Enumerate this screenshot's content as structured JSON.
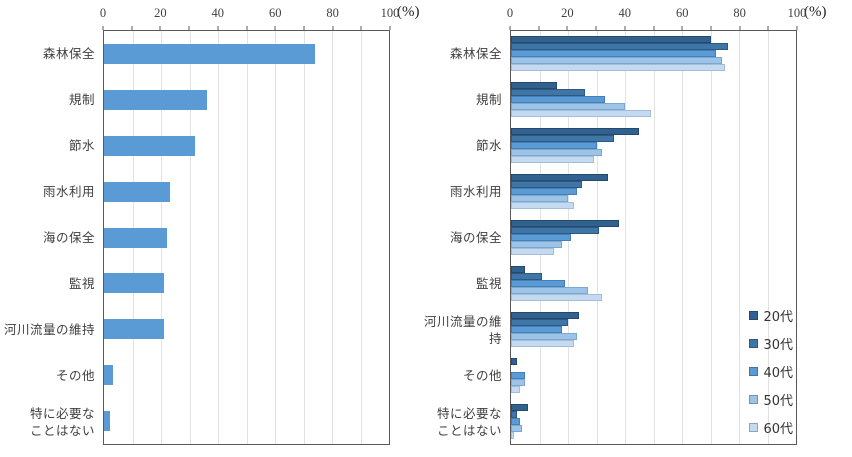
{
  "figure": {
    "background": "#ffffff",
    "frame_color": "#595959",
    "gridline_color": "#e2e2e2",
    "text_color": "#3f3f3f"
  },
  "axis": {
    "tick_labels": [
      "0",
      "20",
      "40",
      "60",
      "80",
      "100"
    ],
    "unit_label": "(%)",
    "minor_grid_step": 10,
    "range": [
      0,
      100
    ]
  },
  "categories": [
    "森林保全",
    "規制",
    "節水",
    "雨水利用",
    "海の保全",
    "監視",
    "河川流量の維持",
    "その他",
    "特に必要な\nことはない"
  ],
  "legend": {
    "position": "inside-lower-right",
    "items": [
      {
        "label": "20代",
        "color": "#31628f"
      },
      {
        "label": "30代",
        "color": "#3e76a7"
      },
      {
        "label": "40代",
        "color": "#5b9bd5"
      },
      {
        "label": "50代",
        "color": "#9dc3e6"
      },
      {
        "label": "60代",
        "color": "#c5d9f1"
      }
    ]
  },
  "chart_data": [
    {
      "type": "bar",
      "orientation": "horizontal",
      "title": "",
      "xlabel": "(%)",
      "xlim": [
        0,
        100
      ],
      "grid": "vertical every 10",
      "bar_color": "#5b9bd5",
      "categories": [
        "森林保全",
        "規制",
        "節水",
        "雨水利用",
        "海の保全",
        "監視",
        "河川流量の維持",
        "その他",
        "特に必要な\nことはない"
      ],
      "values": [
        74,
        36,
        32,
        23,
        22,
        21,
        21,
        3,
        2
      ]
    },
    {
      "type": "bar",
      "orientation": "horizontal",
      "title": "",
      "xlabel": "(%)",
      "xlim": [
        0,
        100
      ],
      "grid": "vertical every 10",
      "legend_position": "inside lower right",
      "categories": [
        "森林保全",
        "規制",
        "節水",
        "雨水利用",
        "海の保全",
        "監視",
        "河川流量の維持",
        "その他",
        "特に必要な\nことはない"
      ],
      "series": [
        {
          "name": "20代",
          "color": "#31628f",
          "border": "#24496c",
          "values": [
            70,
            16,
            45,
            34,
            38,
            5,
            24,
            2,
            6
          ]
        },
        {
          "name": "30代",
          "color": "#3e76a7",
          "border": "#2e587d",
          "values": [
            76,
            26,
            36,
            25,
            31,
            11,
            20,
            0,
            2
          ]
        },
        {
          "name": "40代",
          "color": "#5b9bd5",
          "border": "#4480b8",
          "values": [
            72,
            33,
            30,
            23,
            21,
            19,
            18,
            5,
            3
          ]
        },
        {
          "name": "50代",
          "color": "#9dc3e6",
          "border": "#7ba7d0",
          "values": [
            74,
            40,
            32,
            20,
            18,
            27,
            23,
            5,
            4
          ]
        },
        {
          "name": "60代",
          "color": "#c5d9f1",
          "border": "#a3bedb",
          "values": [
            75,
            49,
            29,
            22,
            15,
            32,
            22,
            3,
            1
          ]
        }
      ]
    }
  ]
}
